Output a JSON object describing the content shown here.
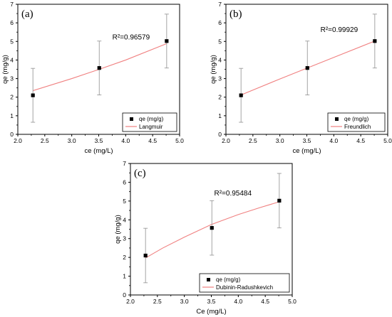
{
  "chart_data": [
    {
      "type": "scatter",
      "panel": "(a)",
      "xlabel": "ce (mg/L)",
      "ylabel": "qe (mg/g)",
      "xlim": [
        2.0,
        5.0
      ],
      "ylim": [
        0,
        7
      ],
      "xticks": [
        "2.0",
        "2.5",
        "3.0",
        "3.5",
        "4.0",
        "4.5",
        "5.0"
      ],
      "yticks": [
        "0",
        "1",
        "2",
        "3",
        "4",
        "5",
        "6",
        "7"
      ],
      "annotation": "R²=0.96579",
      "legend_position": "bottom-right",
      "series": [
        {
          "name": "qe (mg/g)",
          "kind": "points",
          "color": "#000000",
          "points": [
            {
              "x": 2.28,
              "y": 2.1,
              "err": 1.45
            },
            {
              "x": 3.51,
              "y": 3.57,
              "err": 1.45
            },
            {
              "x": 4.76,
              "y": 5.02,
              "err": 1.45
            }
          ]
        },
        {
          "name": "Langmuir",
          "kind": "fit",
          "color": "#f08080",
          "points": [
            {
              "x": 2.28,
              "y": 2.35
            },
            {
              "x": 3.0,
              "y": 3.0
            },
            {
              "x": 3.51,
              "y": 3.5
            },
            {
              "x": 4.0,
              "y": 4.0
            },
            {
              "x": 4.76,
              "y": 4.88
            }
          ]
        }
      ]
    },
    {
      "type": "scatter",
      "panel": "(b)",
      "xlabel": "ce (mg/L)",
      "ylabel": "qe (mg/g)",
      "xlim": [
        2.0,
        5.0
      ],
      "ylim": [
        0,
        7
      ],
      "xticks": [
        "2.0",
        "2.5",
        "3.0",
        "3.5",
        "4.0",
        "4.5",
        "5.0"
      ],
      "yticks": [
        "0",
        "1",
        "2",
        "3",
        "4",
        "5",
        "6",
        "7"
      ],
      "annotation": "R²=0.99929",
      "legend_position": "bottom-right",
      "series": [
        {
          "name": "qe (mg/g)",
          "kind": "points",
          "color": "#000000",
          "points": [
            {
              "x": 2.28,
              "y": 2.1,
              "err": 1.45
            },
            {
              "x": 3.51,
              "y": 3.57,
              "err": 1.45
            },
            {
              "x": 4.76,
              "y": 5.02,
              "err": 1.45
            }
          ]
        },
        {
          "name": "Freundlich",
          "kind": "fit",
          "color": "#f08080",
          "points": [
            {
              "x": 2.28,
              "y": 2.12
            },
            {
              "x": 3.0,
              "y": 2.98
            },
            {
              "x": 3.51,
              "y": 3.57
            },
            {
              "x": 4.0,
              "y": 4.14
            },
            {
              "x": 4.76,
              "y": 5.02
            }
          ]
        }
      ]
    },
    {
      "type": "scatter",
      "panel": "(c)",
      "xlabel": "Ce (mg/L)",
      "ylabel": "qe (mg/g)",
      "xlim": [
        2.0,
        5.0
      ],
      "ylim": [
        0,
        7
      ],
      "xticks": [
        "2.0",
        "2.5",
        "3.0",
        "3.5",
        "4.0",
        "4.5",
        "5.0"
      ],
      "yticks": [
        "0",
        "1",
        "2",
        "3",
        "4",
        "5",
        "6",
        "7"
      ],
      "annotation": "R²=0.95484",
      "legend_position": "bottom-right",
      "series": [
        {
          "name": "qe (mg/g)",
          "kind": "points",
          "color": "#000000",
          "points": [
            {
              "x": 2.28,
              "y": 2.1,
              "err": 1.45
            },
            {
              "x": 3.51,
              "y": 3.57,
              "err": 1.45
            },
            {
              "x": 4.76,
              "y": 5.02,
              "err": 1.45
            }
          ]
        },
        {
          "name": "Dubinin-Radushkevich",
          "kind": "fit",
          "color": "#f08080",
          "points": [
            {
              "x": 2.28,
              "y": 1.97
            },
            {
              "x": 2.6,
              "y": 2.5
            },
            {
              "x": 3.0,
              "y": 3.08
            },
            {
              "x": 3.5,
              "y": 3.75
            },
            {
              "x": 4.0,
              "y": 4.28
            },
            {
              "x": 4.4,
              "y": 4.65
            },
            {
              "x": 4.76,
              "y": 4.96
            }
          ]
        }
      ]
    }
  ]
}
